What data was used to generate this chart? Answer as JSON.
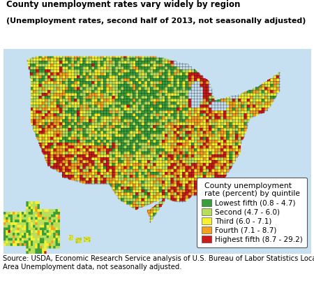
{
  "title_line1": "County unemployment rates vary widely by region",
  "title_line2": "(Unemployment rates, second half of 2013, not seasonally adjusted)",
  "legend_title": "County unemployment\nrate (percent) by quintile",
  "legend_entries": [
    {
      "label": "Lowest fifth (0.8 - 4.7)",
      "color": "#3a9e3a"
    },
    {
      "label": "Second (4.7 - 6.0)",
      "color": "#b8de5a"
    },
    {
      "label": "Third (6.0 - 7.1)",
      "color": "#f5f030"
    },
    {
      "label": "Fourth (7.1 - 8.7)",
      "color": "#f5a020"
    },
    {
      "label": "Highest fifth (8.7 - 29.2)",
      "color": "#cc1a1a"
    }
  ],
  "source_text": "Source: USDA, Economic Research Service analysis of U.S. Bureau of Labor Statistics Local\nArea Unemployment data, not seasonally adjusted.",
  "background_color": "#ffffff",
  "title_fontsize": 8.5,
  "source_fontsize": 7.2,
  "legend_fontsize": 7.5,
  "legend_title_fontsize": 7.8
}
